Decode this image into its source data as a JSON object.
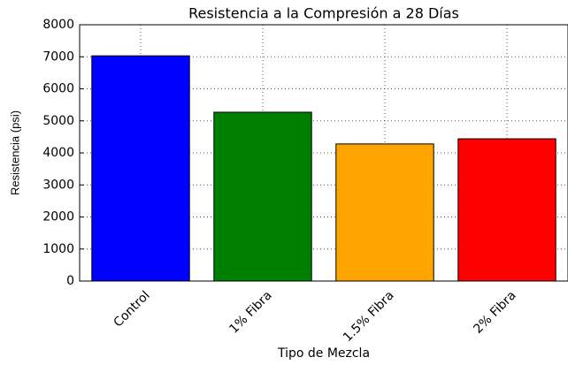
{
  "chart_data": {
    "type": "bar",
    "title": "Resistencia a la Compresión a 28 Días",
    "x_label": "Tipo de Mezcla",
    "y_label": "Resistencia (psi)",
    "categories": [
      "Control",
      "1% Fibra",
      "1.5% Fibra",
      "2% Fibra"
    ],
    "values": [
      7030,
      5270,
      4280,
      4440
    ],
    "colors": [
      "#0000ff",
      "#008000",
      "#ffa500",
      "#ff0000"
    ],
    "ylim": [
      0,
      8000
    ],
    "yticks": [
      0,
      1000,
      2000,
      3000,
      4000,
      5000,
      6000,
      7000,
      8000
    ],
    "grid": true
  }
}
